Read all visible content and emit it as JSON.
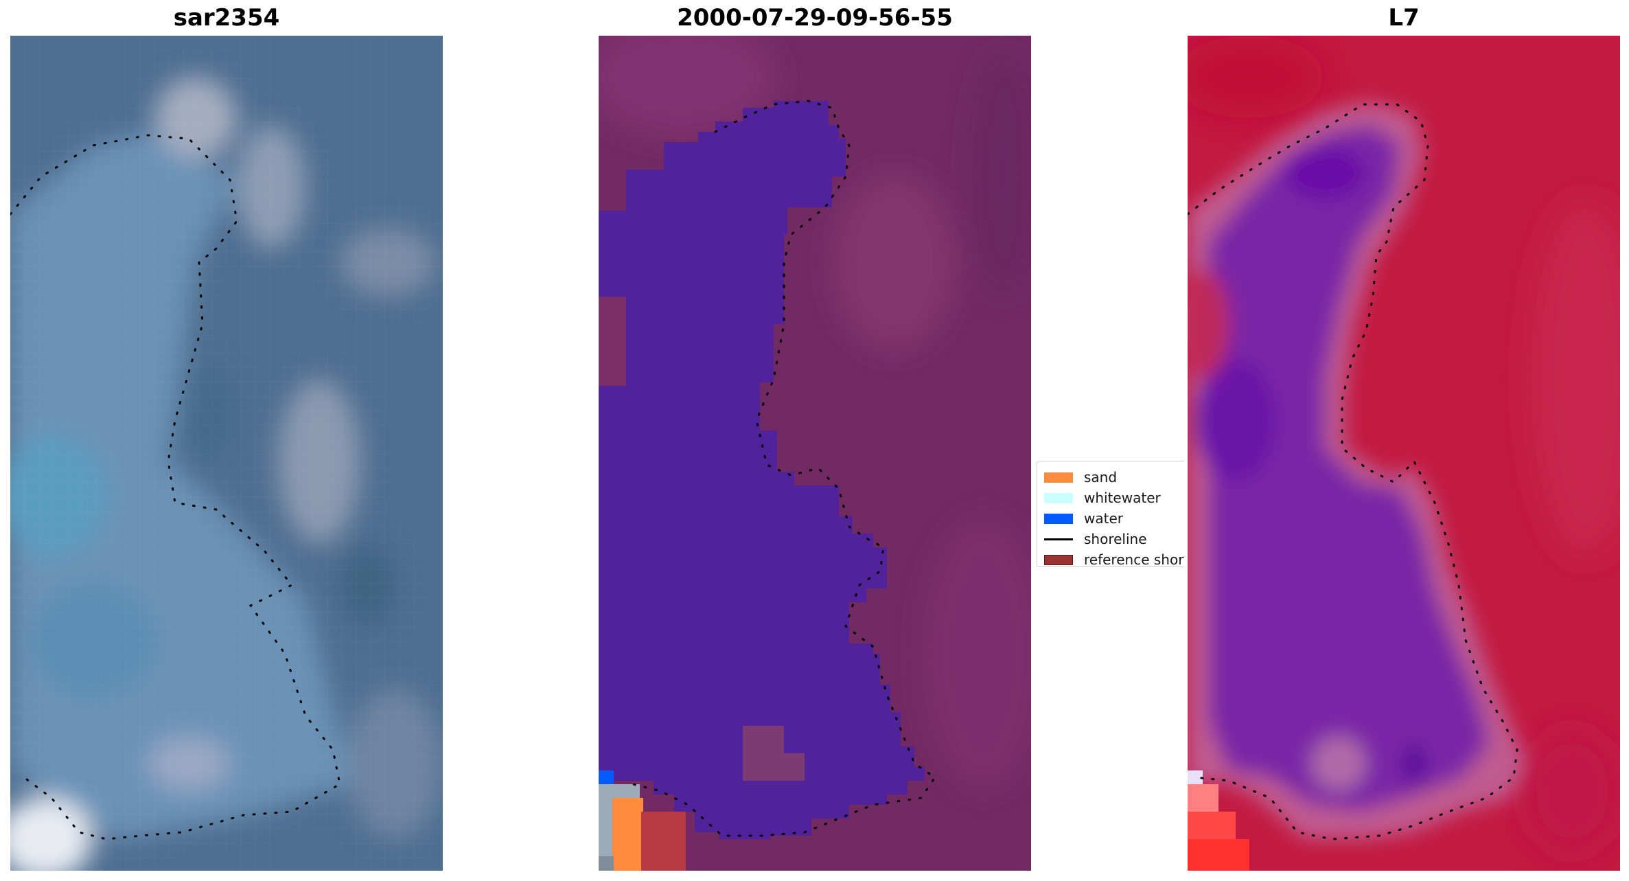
{
  "panels": [
    {
      "title": "sar2354",
      "kind": "rgb"
    },
    {
      "title": "2000-07-29-09-56-55",
      "kind": "classified"
    },
    {
      "title": "L7",
      "kind": "index"
    }
  ],
  "legend": {
    "items": [
      {
        "label": "sand",
        "color": "#ff8c3c",
        "type": "patch"
      },
      {
        "label": "whitewater",
        "color": "#c8ffff",
        "type": "patch"
      },
      {
        "label": "water",
        "color": "#005aff",
        "type": "patch"
      },
      {
        "label": "shoreline",
        "color": "#000000",
        "type": "line"
      },
      {
        "label": "reference shor",
        "color": "#9a3232",
        "type": "patch-outlined"
      }
    ]
  },
  "colors": {
    "rgb_background": "#4e6d8e",
    "rgb_water": "#5b86ad",
    "class_water_overlay": "#52229a",
    "class_land": "#722a63",
    "index_land": "#c4193d",
    "index_water": "#7a27a6",
    "shoreline_dots": "#000000"
  }
}
